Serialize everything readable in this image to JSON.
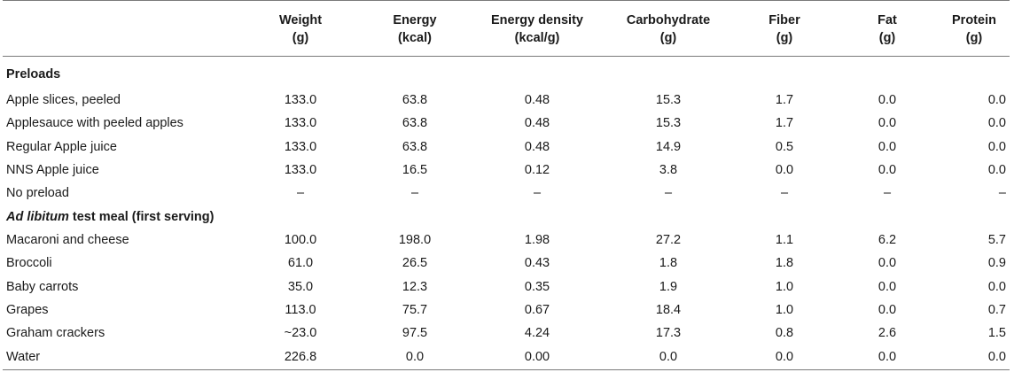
{
  "headers": [
    {
      "line1": "",
      "line2": ""
    },
    {
      "line1": "Weight",
      "line2": "(g)"
    },
    {
      "line1": "Energy",
      "line2": "(kcal)"
    },
    {
      "line1": "Energy density",
      "line2": "(kcal/g)"
    },
    {
      "line1": "Carbohydrate",
      "line2": "(g)"
    },
    {
      "line1": "Fiber",
      "line2": "(g)"
    },
    {
      "line1": "Fat",
      "line2": "(g)"
    },
    {
      "line1": "Protein",
      "line2": "(g)"
    }
  ],
  "sections": [
    {
      "title_em": "",
      "title_rest": "Preloads",
      "rows": [
        {
          "name": "Apple slices, peeled",
          "values": [
            "133.0",
            "63.8",
            "0.48",
            "15.3",
            "1.7",
            "0.0",
            "0.0"
          ]
        },
        {
          "name": "Applesauce with peeled apples",
          "values": [
            "133.0",
            "63.8",
            "0.48",
            "15.3",
            "1.7",
            "0.0",
            "0.0"
          ]
        },
        {
          "name": "Regular Apple juice",
          "values": [
            "133.0",
            "63.8",
            "0.48",
            "14.9",
            "0.5",
            "0.0",
            "0.0"
          ]
        },
        {
          "name": "NNS Apple juice",
          "values": [
            "133.0",
            "16.5",
            "0.12",
            "3.8",
            "0.0",
            "0.0",
            "0.0"
          ]
        },
        {
          "name": "No preload",
          "values": [
            "–",
            "–",
            "–",
            "–",
            "–",
            "–",
            "–"
          ]
        }
      ]
    },
    {
      "title_em": "Ad libitum",
      "title_rest": " test meal (first serving)",
      "rows": [
        {
          "name": "Macaroni and cheese",
          "values": [
            "100.0",
            "198.0",
            "1.98",
            "27.2",
            "1.1",
            "6.2",
            "5.7"
          ]
        },
        {
          "name": "Broccoli",
          "values": [
            "61.0",
            "26.5",
            "0.43",
            "1.8",
            "1.8",
            "0.0",
            "0.9"
          ]
        },
        {
          "name": "Baby carrots",
          "values": [
            "35.0",
            "12.3",
            "0.35",
            "1.9",
            "1.0",
            "0.0",
            "0.0"
          ]
        },
        {
          "name": "Grapes",
          "values": [
            "113.0",
            "75.7",
            "0.67",
            "18.4",
            "1.0",
            "0.0",
            "0.7"
          ]
        },
        {
          "name": "Graham crackers",
          "values": [
            "~23.0",
            "97.5",
            "4.24",
            "17.3",
            "0.8",
            "2.6",
            "1.5"
          ]
        },
        {
          "name": "Water",
          "values": [
            "226.8",
            "0.0",
            "0.00",
            "0.0",
            "0.0",
            "0.0",
            "0.0"
          ]
        }
      ]
    }
  ]
}
